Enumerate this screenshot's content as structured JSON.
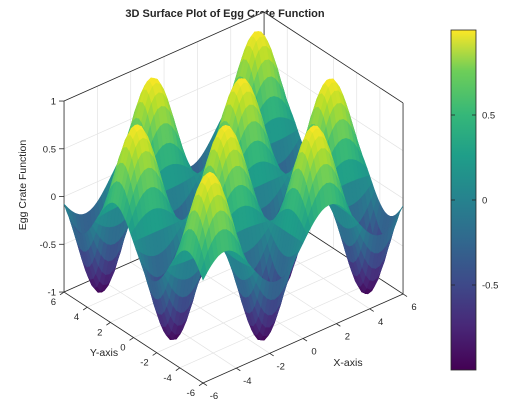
{
  "chart_data": {
    "type": "surface",
    "title": "3D Surface Plot of Egg Crate Function",
    "xlabel": "X-axis",
    "ylabel": "Y-axis",
    "zlabel": "Egg Crate Function",
    "function": "z = sin(x) * sin(y)",
    "x_range": [
      -6,
      6
    ],
    "y_range": [
      -6,
      6
    ],
    "zlim": [
      -1,
      1
    ],
    "x_ticks": [
      "-6",
      "-4",
      "-2",
      "0",
      "2",
      "4",
      "6"
    ],
    "y_ticks": [
      "-6",
      "-4",
      "-2",
      "0",
      "2",
      "4",
      "6"
    ],
    "z_ticks": [
      "-1",
      "-0.5",
      "0",
      "0.5",
      "1"
    ],
    "colormap": "viridis",
    "colorbar": {
      "ticks": [
        "-0.5",
        "0",
        "0.5"
      ],
      "tick_values": [
        -0.5,
        0,
        0.5
      ],
      "range": [
        -1,
        1
      ]
    },
    "grid": true
  }
}
